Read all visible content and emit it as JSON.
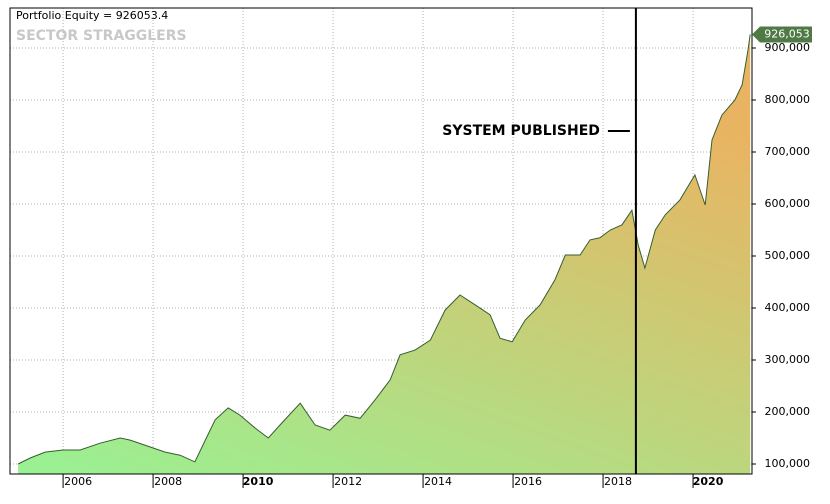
{
  "chart_data": {
    "type": "area",
    "title": "Portfolio Equity = 926053.4",
    "watermark": "SECTOR STRAGGLERS",
    "x": [
      2005.0,
      2005.27,
      2005.6,
      2006.0,
      2006.38,
      2006.82,
      2007.27,
      2007.49,
      2007.93,
      2008.27,
      2008.6,
      2008.93,
      2009.16,
      2009.38,
      2009.67,
      2009.93,
      2010.27,
      2010.56,
      2010.82,
      2011.27,
      2011.6,
      2011.93,
      2012.27,
      2012.6,
      2012.93,
      2013.27,
      2013.49,
      2013.82,
      2014.16,
      2014.49,
      2014.82,
      2015.16,
      2015.49,
      2015.71,
      2015.98,
      2016.27,
      2016.6,
      2016.93,
      2017.16,
      2017.49,
      2017.71,
      2017.93,
      2018.16,
      2018.42,
      2018.64,
      2018.78,
      2018.93,
      2019.16,
      2019.38,
      2019.71,
      2020.04,
      2020.27,
      2020.42,
      2020.64,
      2020.93,
      2021.09,
      2021.22,
      2021.27
    ],
    "values": [
      100000,
      111500,
      123000,
      127000,
      127000,
      140000,
      150000,
      146000,
      133000,
      123000,
      117000,
      104000,
      146000,
      185000,
      208000,
      194000,
      169000,
      150000,
      175000,
      217000,
      175000,
      165000,
      194000,
      188000,
      223000,
      262000,
      310000,
      319000,
      338000,
      396000,
      425000,
      406000,
      387000,
      342000,
      335000,
      377000,
      406000,
      454000,
      502000,
      502000,
      531000,
      535000,
      550000,
      560000,
      588000,
      521000,
      477000,
      550000,
      579000,
      608000,
      656000,
      598000,
      723000,
      771000,
      800000,
      829000,
      896000,
      926053.4
    ],
    "end_label": {
      "value": 926053.4,
      "label": "926,053"
    },
    "color": "#355e2f",
    "fill_colors": [
      "#98f294",
      "#e9b462"
    ],
    "label_color": "#4f7a45",
    "xlim": [
      2004.82,
      2021.31
    ],
    "ylim": [
      80800,
      976900
    ],
    "xticks": [
      2006,
      2008,
      2010,
      2012,
      2014,
      2016,
      2018,
      2020
    ],
    "yticks": [
      {
        "value": 100000,
        "label": "100,000"
      },
      {
        "value": 200000,
        "label": "200,000"
      },
      {
        "value": 300000,
        "label": "300,000"
      },
      {
        "value": 400000,
        "label": "400,000"
      },
      {
        "value": 500000,
        "label": "500,000"
      },
      {
        "value": 600000,
        "label": "600,000"
      },
      {
        "value": 700000,
        "label": "700,000"
      },
      {
        "value": 800000,
        "label": "800,000"
      },
      {
        "value": 900000,
        "label": "900,000"
      }
    ],
    "vline": {
      "x": 2018.73,
      "label": "SYSTEM PUBLISHED"
    },
    "grid": true
  }
}
